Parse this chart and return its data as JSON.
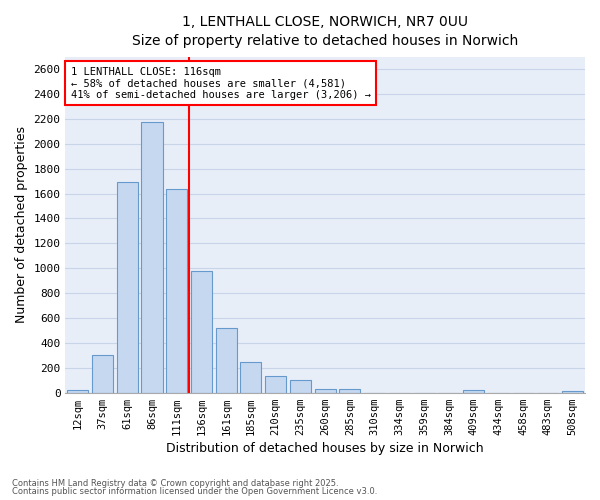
{
  "title1": "1, LENTHALL CLOSE, NORWICH, NR7 0UU",
  "title2": "Size of property relative to detached houses in Norwich",
  "xlabel": "Distribution of detached houses by size in Norwich",
  "ylabel": "Number of detached properties",
  "categories": [
    "12sqm",
    "37sqm",
    "61sqm",
    "86sqm",
    "111sqm",
    "136sqm",
    "161sqm",
    "185sqm",
    "210sqm",
    "235sqm",
    "260sqm",
    "285sqm",
    "310sqm",
    "334sqm",
    "359sqm",
    "384sqm",
    "409sqm",
    "434sqm",
    "458sqm",
    "483sqm",
    "508sqm"
  ],
  "values": [
    20,
    300,
    1690,
    2175,
    1640,
    980,
    520,
    250,
    135,
    100,
    30,
    30,
    0,
    0,
    0,
    0,
    20,
    0,
    0,
    0,
    15
  ],
  "bar_color": "#c5d8f0",
  "bar_edge_color": "#6699cc",
  "grid_color": "#c8d4e8",
  "background_color": "#e8eef8",
  "vline_color": "red",
  "vline_x_pos": 4.5,
  "annotation_line1": "1 LENTHALL CLOSE: 116sqm",
  "annotation_line2": "← 58% of detached houses are smaller (4,581)",
  "annotation_line3": "41% of semi-detached houses are larger (3,206) →",
  "ylim": [
    0,
    2700
  ],
  "yticks": [
    0,
    200,
    400,
    600,
    800,
    1000,
    1200,
    1400,
    1600,
    1800,
    2000,
    2200,
    2400,
    2600
  ],
  "footer1": "Contains HM Land Registry data © Crown copyright and database right 2025.",
  "footer2": "Contains public sector information licensed under the Open Government Licence v3.0."
}
